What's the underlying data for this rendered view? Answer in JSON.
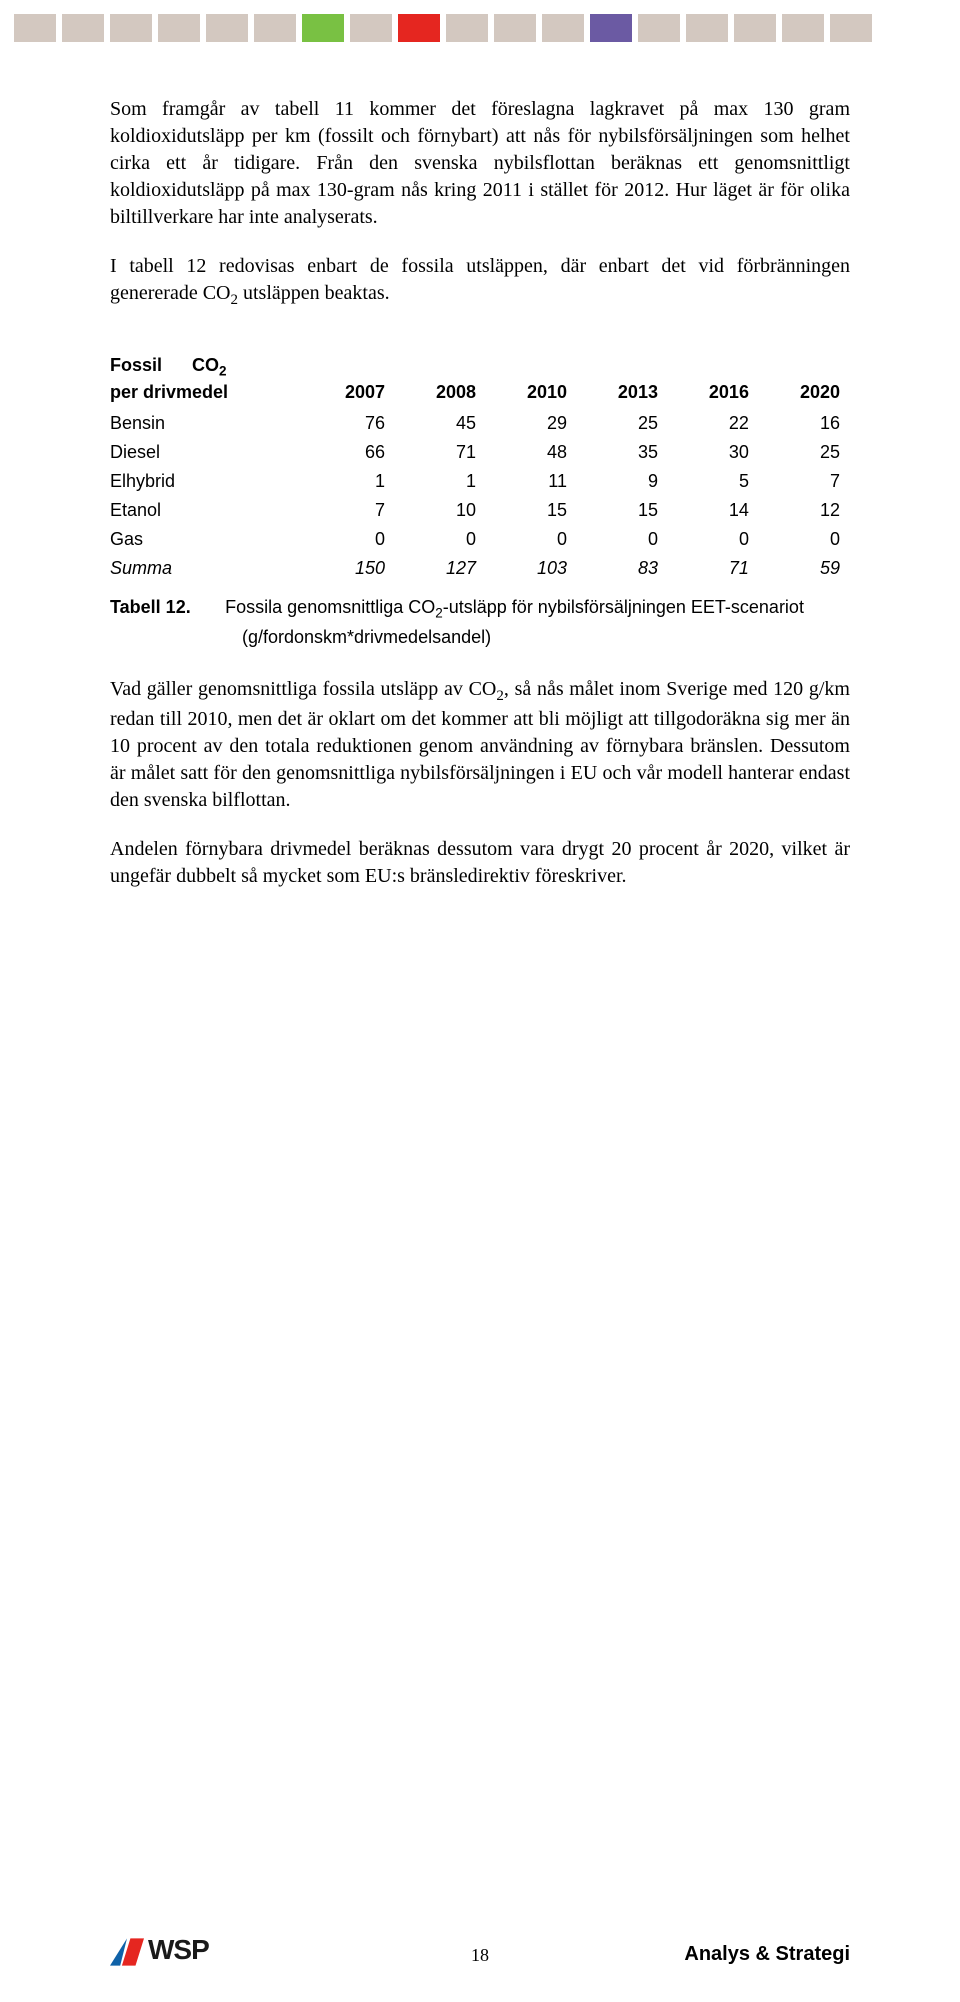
{
  "band_colors": [
    "#d3c8c0",
    "#d3c8c0",
    "#d3c8c0",
    "#d3c8c0",
    "#d3c8c0",
    "#d3c8c0",
    "#79c143",
    "#d3c8c0",
    "#e52620",
    "#d3c8c0",
    "#d3c8c0",
    "#d3c8c0",
    "#6b5aa3",
    "#d3c8c0",
    "#d3c8c0",
    "#d3c8c0",
    "#d3c8c0",
    "#d3c8c0"
  ],
  "paragraphs": {
    "p1": "Som framgår av tabell 11 kommer det föreslagna lagkravet på max 130 gram koldioxidutsläpp per km (fossilt och förnybart) att nås för nybilsförsäljningen som helhet cirka ett år tidigare. Från den svenska nybilsflottan beräknas ett genomsnittligt koldioxidutsläpp på max 130-gram nås kring 2011 i stället för 2012. Hur läget är för olika biltillverkare har inte analyserats.",
    "p2_a": "I tabell 12 redovisas enbart de fossila utsläppen, där enbart det vid förbränningen genererade CO",
    "p2_b": " utsläppen beaktas.",
    "p3_a": "Vad gäller genomsnittliga fossila utsläpp av CO",
    "p3_b": ", så nås målet inom Sverige med 120 g/km redan till 2010, men det är oklart om det kommer att bli möjligt att tillgodoräkna sig mer än 10 procent av den totala reduktionen genom användning av förnybara bränslen. Dessutom är målet satt för den genomsnittliga nybilsförsäljningen i EU och vår modell hanterar endast den svenska bilflottan.",
    "p4": "Andelen förnybara drivmedel beräknas dessutom vara drygt 20 procent år 2020, vilket är ungefär dubbelt så mycket som EU:s bränsledirektiv föreskriver."
  },
  "table": {
    "header_label_line1": "Fossil      CO",
    "header_label_line2": "per drivmedel",
    "years": [
      "2007",
      "2008",
      "2010",
      "2013",
      "2016",
      "2020"
    ],
    "rows": [
      {
        "label": "Bensin",
        "vals": [
          "76",
          "45",
          "29",
          "25",
          "22",
          "16"
        ],
        "sum": false
      },
      {
        "label": "Diesel",
        "vals": [
          "66",
          "71",
          "48",
          "35",
          "30",
          "25"
        ],
        "sum": false
      },
      {
        "label": "Elhybrid",
        "vals": [
          "1",
          "1",
          "11",
          "9",
          "5",
          "7"
        ],
        "sum": false
      },
      {
        "label": "Etanol",
        "vals": [
          "7",
          "10",
          "15",
          "15",
          "14",
          "12"
        ],
        "sum": false
      },
      {
        "label": "Gas",
        "vals": [
          "0",
          "0",
          "0",
          "0",
          "0",
          "0"
        ],
        "sum": false
      },
      {
        "label": "Summa",
        "vals": [
          "150",
          "127",
          "103",
          "83",
          "71",
          "59"
        ],
        "sum": true
      }
    ],
    "caption_label": "Tabell 12.",
    "caption_text_a": "Fossila genomsnittliga CO",
    "caption_text_b": "-utsläpp för nybilsförsäljningen EET-scenariot",
    "caption_cont": "(g/fordonskm*drivmedelsandel)"
  },
  "footer": {
    "page_number": "18",
    "right_text": "Analys & Strategi",
    "logo_text": "WSP",
    "logo_colors": {
      "blue": "#0f62a8",
      "red": "#e52620"
    }
  }
}
